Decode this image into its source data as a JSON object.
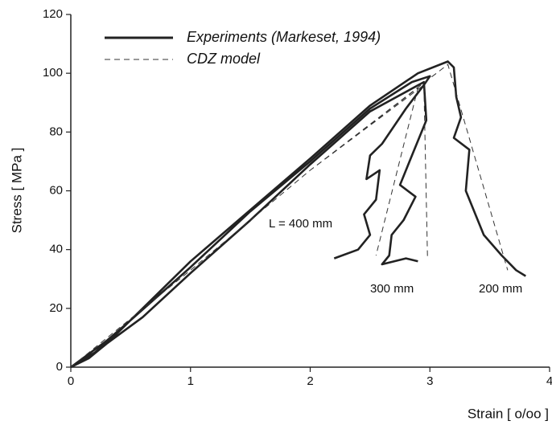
{
  "chart_data": {
    "type": "line",
    "xlabel": "Strain [ o/oo ]",
    "ylabel": "Stress [ MPa ]",
    "xlim": [
      0,
      4
    ],
    "ylim": [
      0,
      120
    ],
    "xticks": [
      0,
      1,
      2,
      3,
      4
    ],
    "yticks": [
      0,
      20,
      40,
      60,
      80,
      100,
      120
    ],
    "annotations": [
      "L = 400 mm",
      "300 mm",
      "200 mm"
    ],
    "series": [
      {
        "name": "Experiments (Markeset, 1994)",
        "color": "#222222",
        "style": "solid",
        "x": [
          0,
          0.1,
          0.3,
          0.5,
          1.0,
          1.5,
          2.0,
          2.5,
          2.85,
          3.0,
          2.95,
          2.8,
          2.6,
          2.5,
          2.47,
          2.58,
          2.55,
          2.45,
          2.5,
          2.4,
          2.2,
          null,
          0,
          0.15,
          0.3,
          0.6,
          1.0,
          1.5,
          2.0,
          2.5,
          2.95,
          2.97,
          2.85,
          2.75,
          2.88,
          2.78,
          2.68,
          2.66,
          2.6,
          2.8,
          2.9,
          null,
          0,
          0.2,
          0.4,
          1.0,
          1.6,
          2.0,
          2.5,
          2.9,
          3.15,
          3.2,
          3.22,
          3.26,
          3.2,
          3.33,
          3.3,
          3.45,
          3.6,
          3.72,
          3.8
        ],
        "values": [
          0,
          3,
          9,
          16,
          34,
          53,
          70,
          88,
          97,
          99,
          96,
          88,
          76,
          72,
          64,
          67,
          57,
          52,
          45,
          40,
          37,
          null,
          0,
          3,
          8,
          17,
          32,
          50,
          69,
          87,
          97,
          84,
          72,
          62,
          58,
          50,
          45,
          38,
          35,
          37,
          36,
          null,
          0,
          5,
          12,
          36,
          57,
          71,
          89,
          100,
          104,
          102,
          92,
          85,
          78,
          74,
          60,
          45,
          38,
          33,
          31
        ]
      },
      {
        "name": "CDZ model",
        "color": "#333333",
        "style": "dashed",
        "x": [
          0,
          1.0,
          2.0,
          2.9,
          2.55,
          null,
          0,
          1.0,
          2.0,
          2.95,
          2.98,
          null,
          0,
          1.0,
          2.0,
          3.15,
          3.65
        ],
        "values": [
          0,
          33,
          67,
          95,
          38,
          null,
          0,
          33,
          67,
          96,
          37,
          null,
          0,
          33,
          67,
          103,
          33
        ]
      }
    ]
  }
}
